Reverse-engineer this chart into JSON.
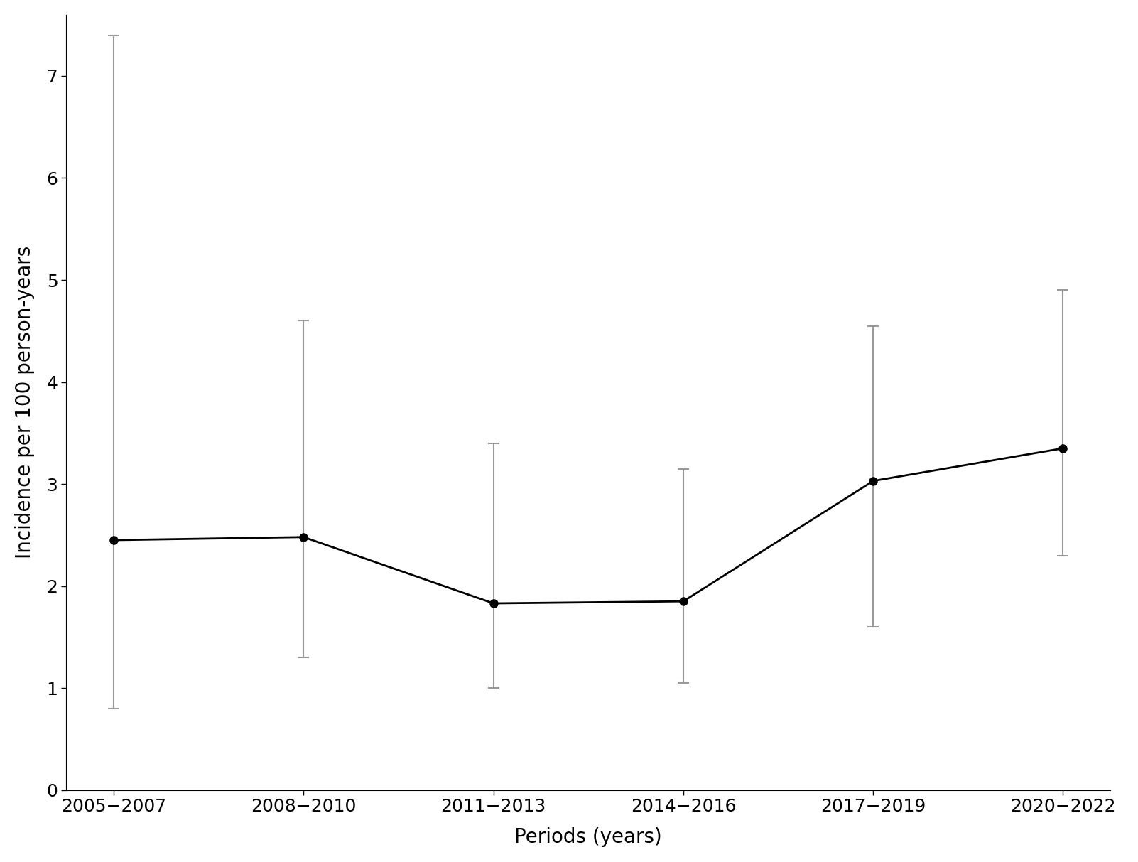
{
  "categories": [
    "2005−2007",
    "2008−2010",
    "2011−2013",
    "2014−2016",
    "2017−2019",
    "2020−2022"
  ],
  "values": [
    2.45,
    2.48,
    1.83,
    1.85,
    3.03,
    3.35
  ],
  "ci_lower": [
    0.8,
    1.3,
    1.0,
    1.05,
    1.6,
    2.3
  ],
  "ci_upper": [
    7.4,
    4.6,
    3.4,
    3.15,
    4.55,
    4.9
  ],
  "xlabel": "Periods (years)",
  "ylabel": "Incidence per 100 person-years",
  "ylim": [
    0,
    7.6
  ],
  "yticks": [
    0,
    1,
    2,
    3,
    4,
    5,
    6,
    7
  ],
  "line_color": "#000000",
  "errorbar_color": "#999999",
  "marker": "o-",
  "marker_size": 8,
  "linewidth": 2.0,
  "capsize": 6,
  "background_color": "#ffffff",
  "xlabel_fontsize": 20,
  "ylabel_fontsize": 20,
  "tick_fontsize": 18
}
